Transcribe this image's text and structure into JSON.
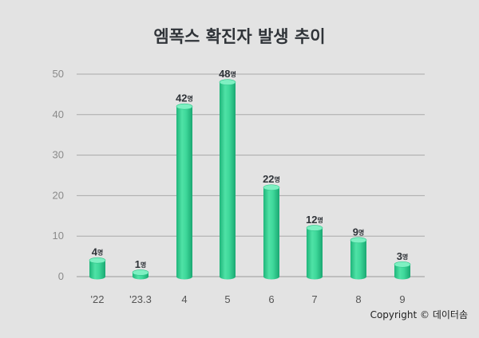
{
  "chart_data": {
    "type": "bar",
    "title": "엠폭스 확진자 발생 추이",
    "categories": [
      "'22",
      "'23.3",
      "4",
      "5",
      "6",
      "7",
      "8",
      "9"
    ],
    "values": [
      4,
      1,
      42,
      48,
      22,
      12,
      9,
      3
    ],
    "value_unit": "명",
    "ylim": [
      0,
      50
    ],
    "yticks": [
      0,
      10,
      20,
      30,
      40,
      50
    ],
    "grid": true,
    "bar_style": "3d-cylinder",
    "colors": {
      "bar": "#3ed89a",
      "bar_dark": "#1fb57a",
      "bar_top": "#7ef0c2",
      "grid": "#a9a9a9",
      "background": "#e3e3e3"
    }
  },
  "footer": {
    "copyright": "Copyright © 데이터솜"
  }
}
